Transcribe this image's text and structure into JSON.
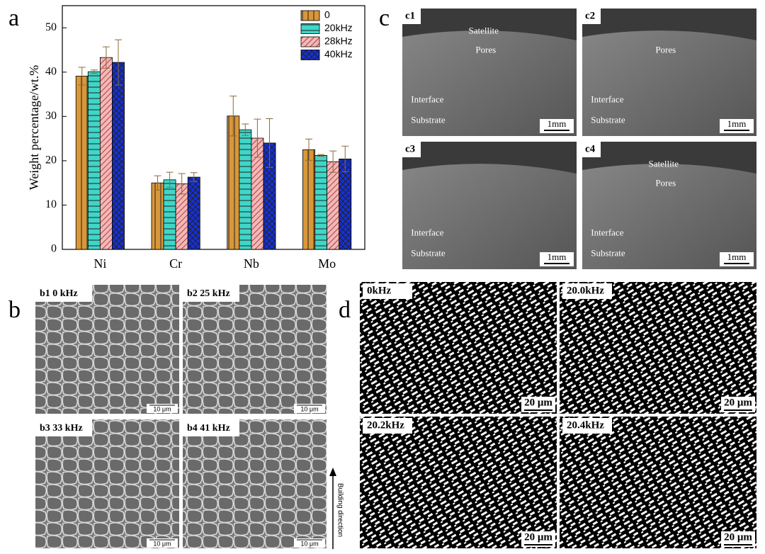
{
  "panel_labels": [
    "a",
    "b",
    "c",
    "d"
  ],
  "chart_data": {
    "type": "bar",
    "ylabel": "Weight percentage/wt.%",
    "categories": [
      "Ni",
      "Cr",
      "Nb",
      "Mo"
    ],
    "series": [
      {
        "name": "0",
        "color": "#d8973a",
        "values": [
          39.1,
          15.0,
          30.1,
          22.5
        ],
        "errors": [
          2.0,
          1.6,
          4.5,
          2.4
        ]
      },
      {
        "name": "20kHz",
        "color": "#3fd6c8",
        "values": [
          40.1,
          15.7,
          27.0,
          21.2
        ],
        "errors": [
          0.4,
          1.7,
          1.3,
          0.2
        ]
      },
      {
        "name": "28kHz",
        "color": "#f2b8b8",
        "values": [
          43.3,
          14.8,
          25.1,
          19.8
        ],
        "errors": [
          2.4,
          2.3,
          4.3,
          2.4
        ]
      },
      {
        "name": "40kHz",
        "color": "#1530d8",
        "values": [
          42.2,
          16.3,
          24.0,
          20.4
        ],
        "errors": [
          5.1,
          1.0,
          5.5,
          2.9
        ]
      }
    ],
    "ylim": [
      0,
      55
    ],
    "yticks": [
      0,
      10,
      20,
      30,
      40,
      50
    ]
  },
  "images_c": [
    {
      "label": "c1",
      "annotations": [
        "Satellite",
        "Pores",
        "Interface",
        "Substrate"
      ],
      "scale": "1mm"
    },
    {
      "label": "c2",
      "annotations": [
        "Pores",
        "Interface",
        "Substrate"
      ],
      "scale": "1mm"
    },
    {
      "label": "c3",
      "annotations": [
        "Interface",
        "Substrate"
      ],
      "scale": "1mm"
    },
    {
      "label": "c4",
      "annotations": [
        "Satellite",
        "Pores",
        "Interface",
        "Substrate"
      ],
      "scale": "1mm"
    }
  ],
  "images_b": [
    {
      "label": "b1 0 kHz",
      "scale": "10 μm"
    },
    {
      "label": "b2 25 kHz",
      "scale": "10 μm"
    },
    {
      "label": "b3 33 kHz",
      "scale": "10 μm"
    },
    {
      "label": "b4 41 kHz",
      "scale": "10 μm"
    }
  ],
  "building_direction": "Building direction",
  "images_d": [
    {
      "label": "0kHz",
      "scale": "20 μm"
    },
    {
      "label": "20.0kHz",
      "scale": "20 μm"
    },
    {
      "label": "20.2kHz",
      "scale": "20 μm"
    },
    {
      "label": "20.4kHz",
      "scale": "20 μm"
    }
  ]
}
